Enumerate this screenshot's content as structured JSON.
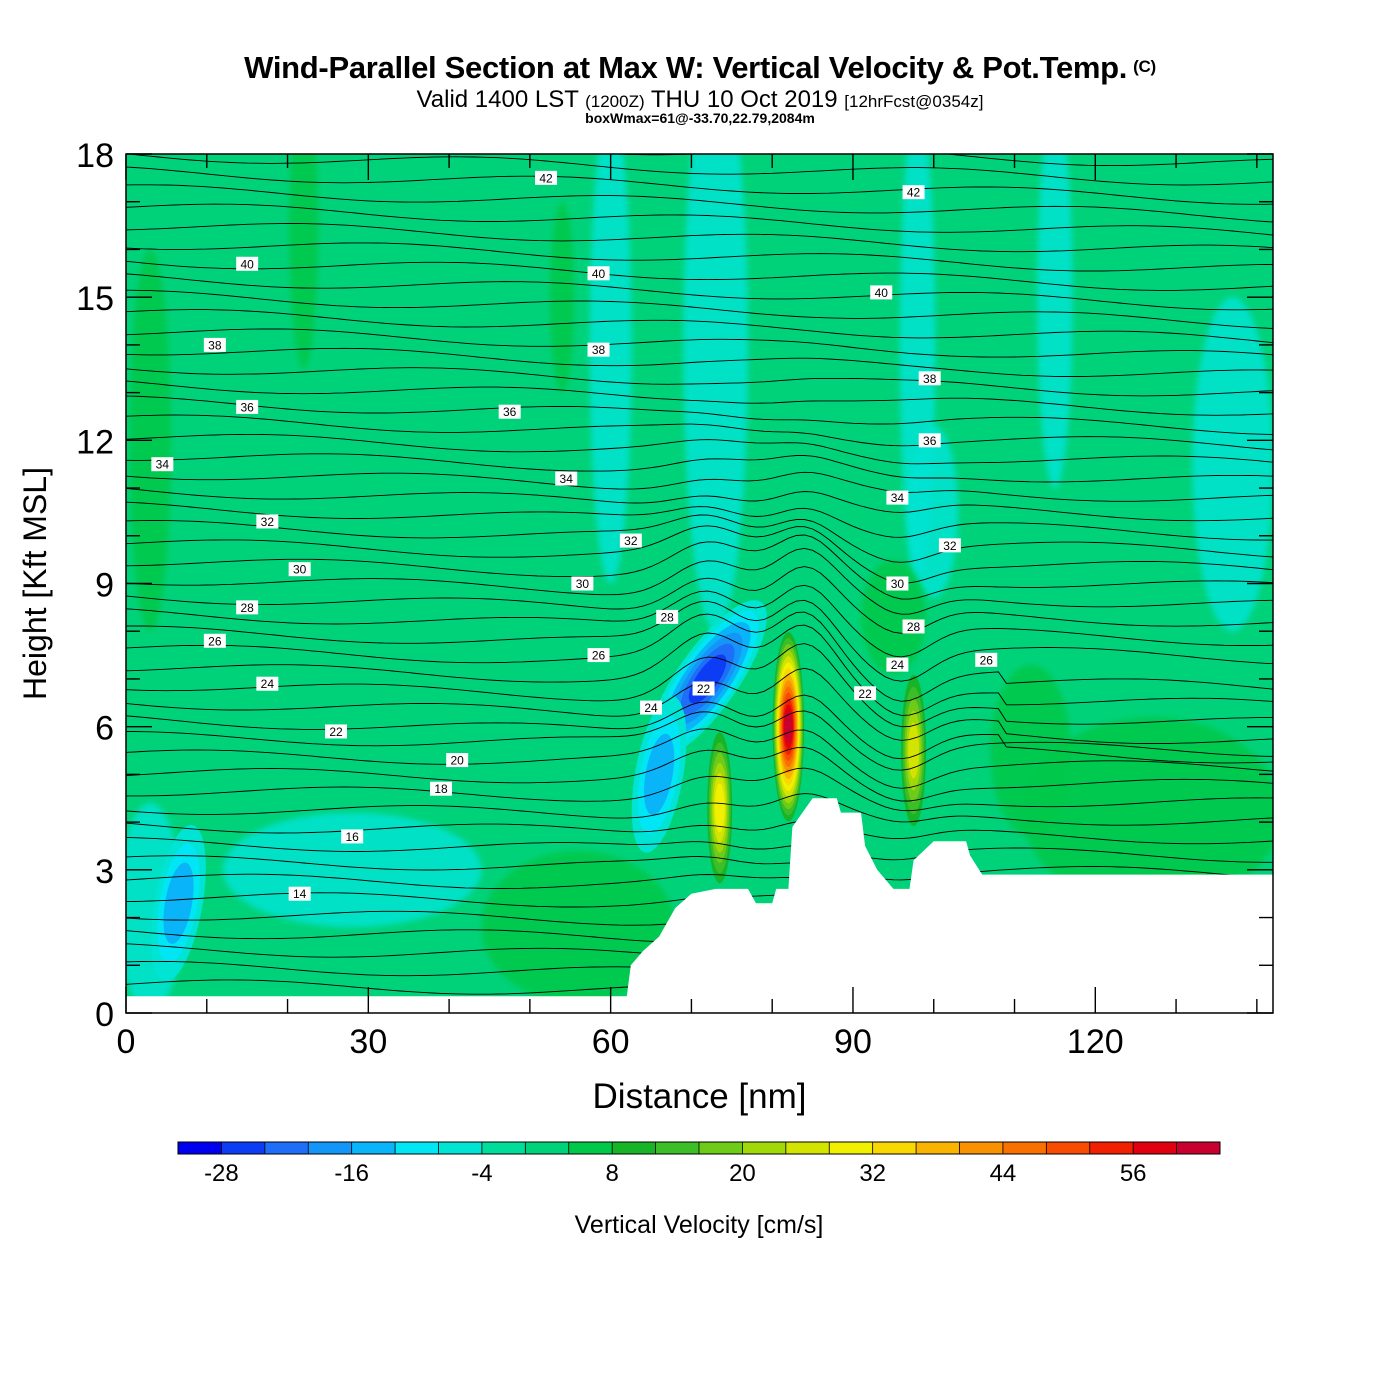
{
  "header": {
    "title": "Wind-Parallel Section at Max W: Vertical Velocity & Pot.Temp.",
    "copyright": "(C)",
    "valid_prefix": "Valid 1400 LST",
    "utc": "(1200Z)",
    "valid_date": "THU 10 Oct 2019",
    "forecast": "[12hrFcst@0354z]",
    "boxwmax": "boxWmax=61@-33.70,22.79,2084m"
  },
  "chart_data": {
    "type": "heatmap",
    "subtype": "cross-section contour (filled vertical velocity + potential temperature isentropes)",
    "xlabel": "Distance [nm]",
    "ylabel": "Height [Kft MSL]",
    "xlim": [
      0,
      142
    ],
    "ylim": [
      0,
      18
    ],
    "x_ticks": [
      0,
      30,
      60,
      90,
      120
    ],
    "y_ticks": [
      0,
      3,
      6,
      9,
      12,
      15,
      18
    ],
    "colorbar": {
      "label": "Vertical Velocity [cm/s]",
      "min": -32,
      "max": 64,
      "step": 4,
      "tick_labels": [
        -28,
        -16,
        -4,
        8,
        20,
        32,
        44,
        56
      ],
      "colors": [
        "#0000f0",
        "#0d3cf5",
        "#1e6ef8",
        "#1496f8",
        "#0ab4f8",
        "#00e6f4",
        "#00e4d4",
        "#00dc9a",
        "#00d27a",
        "#00c848",
        "#18b428",
        "#3cbe28",
        "#6ecc18",
        "#a0d808",
        "#d2e400",
        "#f0f000",
        "#f8d800",
        "#f8b400",
        "#f89200",
        "#f87000",
        "#f84c00",
        "#f02000",
        "#e00010",
        "#c80030"
      ]
    },
    "terrain_profile": [
      [
        0,
        0.35
      ],
      [
        42,
        0.35
      ],
      [
        62,
        0.35
      ],
      [
        62.5,
        1.0
      ],
      [
        64,
        1.3
      ],
      [
        66,
        1.6
      ],
      [
        68,
        2.2
      ],
      [
        70,
        2.5
      ],
      [
        73,
        2.6
      ],
      [
        77,
        2.6
      ],
      [
        78,
        2.3
      ],
      [
        80,
        2.3
      ],
      [
        80.5,
        2.6
      ],
      [
        82,
        2.6
      ],
      [
        82.5,
        3.9
      ],
      [
        85,
        4.5
      ],
      [
        88,
        4.5
      ],
      [
        88.5,
        4.2
      ],
      [
        91,
        4.2
      ],
      [
        91.5,
        3.5
      ],
      [
        93,
        3.0
      ],
      [
        95,
        2.6
      ],
      [
        97,
        2.6
      ],
      [
        97.5,
        3.2
      ],
      [
        100,
        3.6
      ],
      [
        104,
        3.6
      ],
      [
        104.5,
        3.3
      ],
      [
        106,
        2.9
      ],
      [
        142,
        2.9
      ]
    ],
    "updrafts": [
      {
        "x": 73.5,
        "z": 4.3,
        "peak_cm_s": 30
      },
      {
        "x": 82.0,
        "z": 6.0,
        "peak_cm_s": 61
      },
      {
        "x": 97.5,
        "z": 5.5,
        "peak_cm_s": 24
      }
    ],
    "downdrafts": [
      {
        "x": 72.0,
        "z": 7.0,
        "min_cm_s": -26
      },
      {
        "x": 66.0,
        "z": 5.0,
        "min_cm_s": -14
      },
      {
        "x": 6.5,
        "z": 2.3,
        "min_cm_s": -14
      }
    ],
    "isentrope_labels": [
      {
        "text": "42",
        "x": 52,
        "z": 17.5
      },
      {
        "text": "42",
        "x": 97.5,
        "z": 17.2
      },
      {
        "text": "40",
        "x": 15,
        "z": 15.7
      },
      {
        "text": "40",
        "x": 58.5,
        "z": 15.5
      },
      {
        "text": "40",
        "x": 93.5,
        "z": 15.1
      },
      {
        "text": "38",
        "x": 11,
        "z": 14.0
      },
      {
        "text": "38",
        "x": 58.5,
        "z": 13.9
      },
      {
        "text": "38",
        "x": 99.5,
        "z": 13.3
      },
      {
        "text": "36",
        "x": 15,
        "z": 12.7
      },
      {
        "text": "36",
        "x": 47.5,
        "z": 12.6
      },
      {
        "text": "36",
        "x": 99.5,
        "z": 12.0
      },
      {
        "text": "34",
        "x": 4.5,
        "z": 11.5
      },
      {
        "text": "34",
        "x": 54.5,
        "z": 11.2
      },
      {
        "text": "34",
        "x": 95.5,
        "z": 10.8
      },
      {
        "text": "32",
        "x": 17.5,
        "z": 10.3
      },
      {
        "text": "32",
        "x": 62.5,
        "z": 9.9
      },
      {
        "text": "32",
        "x": 102,
        "z": 9.8
      },
      {
        "text": "30",
        "x": 21.5,
        "z": 9.3
      },
      {
        "text": "30",
        "x": 56.5,
        "z": 9.0
      },
      {
        "text": "30",
        "x": 95.5,
        "z": 9.0
      },
      {
        "text": "28",
        "x": 15,
        "z": 8.5
      },
      {
        "text": "28",
        "x": 67,
        "z": 8.3
      },
      {
        "text": "28",
        "x": 97.5,
        "z": 8.1
      },
      {
        "text": "26",
        "x": 11,
        "z": 7.8
      },
      {
        "text": "26",
        "x": 58.5,
        "z": 7.5
      },
      {
        "text": "26",
        "x": 106.5,
        "z": 7.4
      },
      {
        "text": "24",
        "x": 17.5,
        "z": 6.9
      },
      {
        "text": "24",
        "x": 65,
        "z": 6.4
      },
      {
        "text": "24",
        "x": 95.5,
        "z": 7.3
      },
      {
        "text": "22",
        "x": 26,
        "z": 5.9
      },
      {
        "text": "22",
        "x": 71.5,
        "z": 6.8
      },
      {
        "text": "22",
        "x": 91.5,
        "z": 6.7
      },
      {
        "text": "20",
        "x": 41,
        "z": 5.3
      },
      {
        "text": "18",
        "x": 39,
        "z": 4.7
      },
      {
        "text": "16",
        "x": 28,
        "z": 3.7
      },
      {
        "text": "14",
        "x": 21.5,
        "z": 2.5
      }
    ]
  }
}
